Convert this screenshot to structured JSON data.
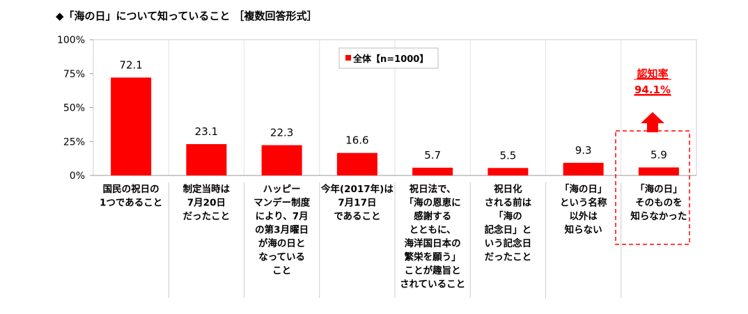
{
  "chart_data": {
    "type": "bar",
    "title": "◆「海の日」について知っていること ［複数回答形式］",
    "xlabel": "",
    "ylabel": "",
    "ylim": [
      0,
      100
    ],
    "yticks": [
      "0%",
      "25%",
      "50%",
      "75%",
      "100%"
    ],
    "grid": true,
    "legend": {
      "position": "top-center",
      "entries": [
        "全体【n=1000】"
      ]
    },
    "categories": [
      [
        "国民の祝日の",
        "1つであること"
      ],
      [
        "制定当時は",
        "7月20日",
        "だったこと"
      ],
      [
        "ハッピー",
        "マンデー制度",
        "により、7月",
        "の第3月曜日",
        "が海の日と",
        "なっている",
        "こと"
      ],
      [
        "今年(2017年)は",
        "7月17日",
        "であること"
      ],
      [
        "祝日法で、",
        "「海の恩恵に",
        "感謝する",
        "とともに、",
        "海洋国日本の",
        "繁栄を願う」",
        "ことが趣旨と",
        "されていること"
      ],
      [
        "祝日化",
        "される前は",
        "「海の",
        "記念日」と",
        "いう記念日",
        "だったこと"
      ],
      [
        "「海の日」",
        "という名称",
        "以外は",
        "知らない"
      ],
      [
        "「海の日」",
        "そのものを",
        "知らなかった"
      ]
    ],
    "series": [
      {
        "name": "全体【n=1000】",
        "values": [
          72.1,
          23.1,
          22.3,
          16.6,
          5.7,
          5.5,
          9.3,
          5.9
        ],
        "color": "#ff0000"
      }
    ],
    "annotation": {
      "lines": [
        "認知率",
        "94.1%"
      ],
      "color": "#ff0000"
    }
  }
}
